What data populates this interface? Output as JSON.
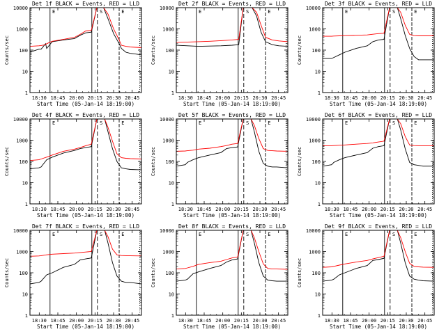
{
  "figure": {
    "ylabel": "Counts/sec",
    "xlabel": "Start Time (05-Jan-14 18:19:00)",
    "background": "#ffffff",
    "axis_color": "#000000",
    "events_color": "#000000",
    "lld_color": "#ff0000",
    "x_tick_labels": [
      "18:30",
      "18:45",
      "20:00",
      "20:15",
      "20:30",
      "20:45"
    ],
    "y_tick_labels": [
      "1",
      "10",
      "100",
      "1000",
      "10000"
    ],
    "event_letters": [
      "E",
      "S",
      "E"
    ]
  },
  "chart_data": [
    {
      "type": "line",
      "title": "Det 1f BLACK = Events, RED = LLD",
      "ylabel": "Counts/sec",
      "xlabel": "Start Time (05-Jan-14 18:19:00)",
      "yscale": "log",
      "ylim": [
        1,
        10000
      ],
      "x_ticks": [
        "18:30",
        "18:45",
        "20:00",
        "20:15",
        "20:30",
        "20:45"
      ],
      "grid": false,
      "series": [
        {
          "name": "Events",
          "color": "#000000",
          "x": [
            0,
            0.08,
            0.1,
            0.14,
            0.15,
            0.2,
            0.3,
            0.4,
            0.45,
            0.5,
            0.55,
            0.6,
            0.62,
            0.66,
            0.7,
            0.75,
            0.8,
            0.82,
            0.86,
            0.9,
            0.95,
            1.0
          ],
          "values": [
            80,
            110,
            110,
            200,
            120,
            250,
            300,
            350,
            500,
            650,
            700,
            10000,
            10000,
            10000,
            3000,
            600,
            200,
            120,
            80,
            70,
            65,
            60
          ]
        },
        {
          "name": "LLD",
          "color": "#ff0000",
          "x": [
            0,
            0.08,
            0.1,
            0.14,
            0.15,
            0.2,
            0.3,
            0.4,
            0.45,
            0.5,
            0.55,
            0.6,
            0.62,
            0.66,
            0.7,
            0.75,
            0.8,
            0.82,
            0.86,
            0.9,
            0.95,
            1.0
          ],
          "values": [
            150,
            160,
            165,
            180,
            200,
            260,
            320,
            400,
            550,
            800,
            850,
            10000,
            10000,
            10000,
            5000,
            1000,
            300,
            170,
            150,
            140,
            135,
            130
          ]
        }
      ]
    },
    {
      "type": "line",
      "title": "Det 2f BLACK = Events, RED = LLD",
      "ylabel": "Counts/sec",
      "xlabel": "Start Time (05-Jan-14 18:19:00)",
      "yscale": "log",
      "ylim": [
        1,
        10000
      ],
      "x_ticks": [
        "18:30",
        "18:45",
        "20:00",
        "20:15",
        "20:30",
        "20:45"
      ],
      "grid": false,
      "series": [
        {
          "name": "Events",
          "color": "#000000",
          "x": [
            0,
            0.1,
            0.2,
            0.3,
            0.4,
            0.5,
            0.56,
            0.6,
            0.64,
            0.68,
            0.72,
            0.76,
            0.8,
            0.86,
            0.92,
            1.0
          ],
          "values": [
            170,
            160,
            150,
            155,
            160,
            170,
            180,
            10000,
            10000,
            10000,
            4000,
            700,
            250,
            180,
            160,
            150
          ]
        },
        {
          "name": "LLD",
          "color": "#ff0000",
          "x": [
            0,
            0.1,
            0.2,
            0.3,
            0.4,
            0.5,
            0.56,
            0.6,
            0.64,
            0.68,
            0.72,
            0.76,
            0.8,
            0.86,
            0.92,
            1.0
          ],
          "values": [
            230,
            240,
            250,
            260,
            280,
            300,
            320,
            10000,
            10000,
            10000,
            6000,
            1500,
            400,
            300,
            270,
            250
          ]
        }
      ]
    },
    {
      "type": "line",
      "title": "Det 3f BLACK = Events, RED = LLD",
      "ylabel": "Counts/sec",
      "xlabel": "Start Time (05-Jan-14 18:19:00)",
      "yscale": "log",
      "ylim": [
        1,
        10000
      ],
      "x_ticks": [
        "18:30",
        "18:45",
        "20:00",
        "20:15",
        "20:30",
        "20:45"
      ],
      "grid": false,
      "series": [
        {
          "name": "Events",
          "color": "#000000",
          "x": [
            0,
            0.08,
            0.1,
            0.15,
            0.2,
            0.3,
            0.4,
            0.45,
            0.5,
            0.55,
            0.6,
            0.63,
            0.67,
            0.7,
            0.74,
            0.78,
            0.82,
            0.86,
            0.9,
            1.0
          ],
          "values": [
            40,
            40,
            45,
            60,
            80,
            120,
            160,
            250,
            300,
            320,
            10000,
            10000,
            10000,
            3000,
            500,
            120,
            50,
            35,
            35,
            35
          ]
        },
        {
          "name": "LLD",
          "color": "#ff0000",
          "x": [
            0,
            0.08,
            0.1,
            0.15,
            0.2,
            0.3,
            0.4,
            0.45,
            0.5,
            0.55,
            0.6,
            0.63,
            0.67,
            0.7,
            0.74,
            0.78,
            0.82,
            0.86,
            0.9,
            1.0
          ],
          "values": [
            450,
            450,
            460,
            470,
            480,
            500,
            520,
            560,
            600,
            620,
            10000,
            10000,
            10000,
            6000,
            1500,
            550,
            480,
            470,
            470,
            470
          ]
        }
      ]
    },
    {
      "type": "line",
      "title": "Det 4f BLACK = Events, RED = LLD",
      "ylabel": "Counts/sec",
      "xlabel": "Start Time (05-Jan-14 18:19:00)",
      "yscale": "log",
      "ylim": [
        1,
        10000
      ],
      "x_ticks": [
        "18:30",
        "18:45",
        "20:00",
        "20:15",
        "20:30",
        "20:45"
      ],
      "grid": false,
      "series": [
        {
          "name": "Events",
          "color": "#000000",
          "x": [
            0,
            0.08,
            0.1,
            0.15,
            0.2,
            0.3,
            0.4,
            0.45,
            0.5,
            0.55,
            0.6,
            0.63,
            0.67,
            0.7,
            0.74,
            0.78,
            0.82,
            0.86,
            0.9,
            1.0
          ],
          "values": [
            45,
            50,
            55,
            120,
            160,
            250,
            330,
            400,
            450,
            500,
            10000,
            10000,
            10000,
            2500,
            400,
            100,
            50,
            45,
            42,
            40
          ]
        },
        {
          "name": "LLD",
          "color": "#ff0000",
          "x": [
            0,
            0.08,
            0.1,
            0.15,
            0.2,
            0.3,
            0.4,
            0.45,
            0.5,
            0.55,
            0.6,
            0.63,
            0.67,
            0.7,
            0.74,
            0.78,
            0.82,
            0.86,
            0.9,
            1.0
          ],
          "values": [
            110,
            120,
            130,
            160,
            200,
            300,
            380,
            450,
            550,
            650,
            10000,
            10000,
            10000,
            4000,
            900,
            230,
            150,
            140,
            135,
            130
          ]
        }
      ]
    },
    {
      "type": "line",
      "title": "Det 5f BLACK = Events, RED = LLD",
      "ylabel": "Counts/sec",
      "xlabel": "Start Time (05-Jan-14 18:19:00)",
      "yscale": "log",
      "ylim": [
        1,
        10000
      ],
      "x_ticks": [
        "18:30",
        "18:45",
        "20:00",
        "20:15",
        "20:30",
        "20:45"
      ],
      "grid": false,
      "series": [
        {
          "name": "Events",
          "color": "#000000",
          "x": [
            0,
            0.08,
            0.1,
            0.15,
            0.2,
            0.3,
            0.4,
            0.45,
            0.5,
            0.55,
            0.6,
            0.63,
            0.67,
            0.7,
            0.74,
            0.78,
            0.82,
            0.86,
            0.9,
            1.0
          ],
          "values": [
            60,
            70,
            90,
            120,
            150,
            200,
            260,
            400,
            450,
            480,
            10000,
            10000,
            10000,
            2500,
            300,
            80,
            60,
            55,
            55,
            50
          ]
        },
        {
          "name": "LLD",
          "color": "#ff0000",
          "x": [
            0,
            0.08,
            0.1,
            0.15,
            0.2,
            0.3,
            0.4,
            0.45,
            0.5,
            0.55,
            0.6,
            0.63,
            0.67,
            0.7,
            0.74,
            0.78,
            0.82,
            0.86,
            0.9,
            1.0
          ],
          "values": [
            300,
            310,
            320,
            340,
            380,
            420,
            500,
            560,
            650,
            700,
            10000,
            10000,
            10000,
            5000,
            1200,
            400,
            330,
            320,
            310,
            300
          ]
        }
      ]
    },
    {
      "type": "line",
      "title": "Det 6f BLACK = Events, RED = LLD",
      "ylabel": "Counts/sec",
      "xlabel": "Start Time (05-Jan-14 18:19:00)",
      "yscale": "log",
      "ylim": [
        1,
        10000
      ],
      "x_ticks": [
        "18:30",
        "18:45",
        "20:00",
        "20:15",
        "20:30",
        "20:45"
      ],
      "grid": false,
      "series": [
        {
          "name": "Events",
          "color": "#000000",
          "x": [
            0,
            0.08,
            0.1,
            0.15,
            0.2,
            0.3,
            0.4,
            0.45,
            0.5,
            0.55,
            0.6,
            0.63,
            0.67,
            0.7,
            0.74,
            0.78,
            0.82,
            0.86,
            0.9,
            1.0
          ],
          "values": [
            60,
            70,
            90,
            120,
            150,
            200,
            260,
            420,
            500,
            550,
            10000,
            10000,
            10000,
            3000,
            400,
            90,
            70,
            65,
            60,
            60
          ]
        },
        {
          "name": "LLD",
          "color": "#ff0000",
          "x": [
            0,
            0.08,
            0.1,
            0.15,
            0.2,
            0.3,
            0.4,
            0.45,
            0.5,
            0.55,
            0.6,
            0.63,
            0.67,
            0.7,
            0.74,
            0.78,
            0.82,
            0.86,
            0.9,
            1.0
          ],
          "values": [
            550,
            550,
            560,
            580,
            600,
            650,
            700,
            750,
            820,
            900,
            10000,
            10000,
            10000,
            6000,
            1500,
            600,
            560,
            550,
            550,
            550
          ]
        }
      ]
    },
    {
      "type": "line",
      "title": "Det 7f BLACK = Events, RED = LLD",
      "ylabel": "Counts/sec",
      "xlabel": "Start Time (05-Jan-14 18:19:00)",
      "yscale": "log",
      "ylim": [
        1,
        10000
      ],
      "x_ticks": [
        "18:30",
        "18:45",
        "20:00",
        "20:15",
        "20:30",
        "20:45"
      ],
      "grid": false,
      "series": [
        {
          "name": "Events",
          "color": "#000000",
          "x": [
            0,
            0.08,
            0.1,
            0.15,
            0.2,
            0.3,
            0.4,
            0.45,
            0.5,
            0.55,
            0.6,
            0.63,
            0.67,
            0.7,
            0.74,
            0.78,
            0.82,
            0.86,
            0.9,
            1.0
          ],
          "values": [
            30,
            35,
            40,
            80,
            100,
            180,
            250,
            400,
            450,
            500,
            10000,
            10000,
            10000,
            2500,
            300,
            70,
            40,
            35,
            35,
            30
          ]
        },
        {
          "name": "LLD",
          "color": "#ff0000",
          "x": [
            0,
            0.08,
            0.1,
            0.15,
            0.2,
            0.3,
            0.4,
            0.45,
            0.5,
            0.55,
            0.6,
            0.63,
            0.67,
            0.7,
            0.74,
            0.78,
            0.82,
            0.86,
            0.9,
            1.0
          ],
          "values": [
            600,
            620,
            640,
            700,
            750,
            800,
            850,
            900,
            950,
            1000,
            10000,
            10000,
            10000,
            5000,
            1300,
            700,
            650,
            640,
            630,
            620
          ]
        }
      ]
    },
    {
      "type": "line",
      "title": "Det 8f BLACK = Events, RED = LLD",
      "ylabel": "Counts/sec",
      "xlabel": "Start Time (05-Jan-14 18:19:00)",
      "yscale": "log",
      "ylim": [
        1,
        10000
      ],
      "x_ticks": [
        "18:30",
        "18:45",
        "20:00",
        "20:15",
        "20:30",
        "20:45"
      ],
      "grid": false,
      "series": [
        {
          "name": "Events",
          "color": "#000000",
          "x": [
            0,
            0.08,
            0.1,
            0.15,
            0.2,
            0.3,
            0.4,
            0.45,
            0.5,
            0.55,
            0.6,
            0.63,
            0.67,
            0.7,
            0.74,
            0.78,
            0.82,
            0.86,
            0.9,
            1.0
          ],
          "values": [
            40,
            45,
            50,
            90,
            110,
            160,
            220,
            320,
            400,
            450,
            10000,
            10000,
            10000,
            2500,
            300,
            70,
            45,
            42,
            40,
            40
          ]
        },
        {
          "name": "LLD",
          "color": "#ff0000",
          "x": [
            0,
            0.08,
            0.1,
            0.15,
            0.2,
            0.3,
            0.4,
            0.45,
            0.5,
            0.55,
            0.6,
            0.63,
            0.67,
            0.7,
            0.74,
            0.78,
            0.82,
            0.86,
            0.9,
            1.0
          ],
          "values": [
            150,
            160,
            170,
            200,
            250,
            300,
            350,
            420,
            500,
            550,
            10000,
            10000,
            10000,
            4500,
            1000,
            260,
            160,
            150,
            150,
            145
          ]
        }
      ]
    },
    {
      "type": "line",
      "title": "Det 9f BLACK = Events, RED = LLD",
      "ylabel": "Counts/sec",
      "xlabel": "Start Time (05-Jan-14 18:19:00)",
      "yscale": "log",
      "ylim": [
        1,
        10000
      ],
      "x_ticks": [
        "18:30",
        "18:45",
        "20:00",
        "20:15",
        "20:30",
        "20:45"
      ],
      "grid": false,
      "series": [
        {
          "name": "Events",
          "color": "#000000",
          "x": [
            0,
            0.08,
            0.1,
            0.15,
            0.2,
            0.3,
            0.4,
            0.45,
            0.5,
            0.55,
            0.6,
            0.63,
            0.67,
            0.7,
            0.74,
            0.78,
            0.82,
            0.86,
            0.9,
            1.0
          ],
          "values": [
            40,
            45,
            50,
            80,
            100,
            160,
            220,
            380,
            420,
            480,
            10000,
            10000,
            10000,
            2500,
            300,
            70,
            50,
            45,
            42,
            40
          ]
        },
        {
          "name": "LLD",
          "color": "#ff0000",
          "x": [
            0,
            0.08,
            0.1,
            0.15,
            0.2,
            0.3,
            0.4,
            0.45,
            0.5,
            0.55,
            0.6,
            0.63,
            0.67,
            0.7,
            0.74,
            0.78,
            0.82,
            0.86,
            0.9,
            1.0
          ],
          "values": [
            180,
            190,
            200,
            230,
            260,
            320,
            380,
            450,
            520,
            600,
            10000,
            10000,
            10000,
            4500,
            1000,
            280,
            200,
            190,
            185,
            180
          ]
        }
      ]
    }
  ]
}
